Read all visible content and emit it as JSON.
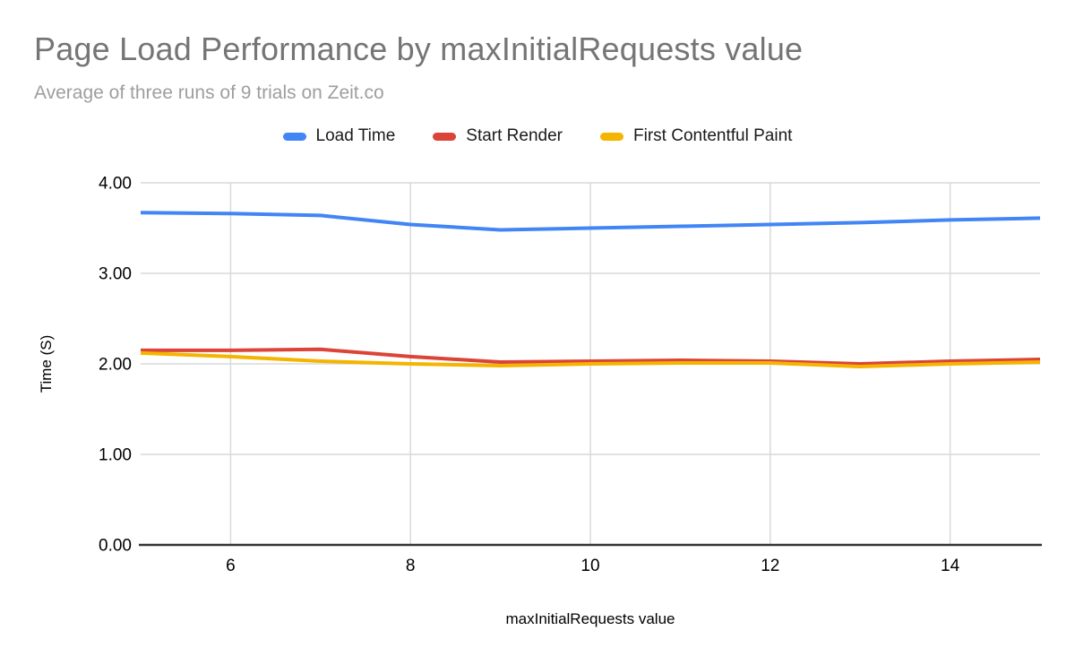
{
  "title": "Page Load Performance by maxInitialRequests value",
  "subtitle": "Average of three runs of 9 trials on Zeit.co",
  "colors": {
    "title": "#757575",
    "subtitle": "#9e9e9e",
    "gridline": "#d9d9d9",
    "axis_line": "#333333",
    "tick_label": "#000000"
  },
  "chart_data": {
    "type": "line",
    "title": "Page Load Performance by maxInitialRequests value",
    "subtitle": "Average of three runs of 9 trials on Zeit.co",
    "xlabel": "maxInitialRequests value",
    "ylabel": "Time (S)",
    "xlim": [
      5,
      15
    ],
    "ylim": [
      0,
      4
    ],
    "grid": true,
    "legend_position": "top-center",
    "x": [
      5,
      6,
      7,
      8,
      9,
      10,
      11,
      12,
      13,
      14,
      15
    ],
    "x_ticks": [
      6,
      8,
      10,
      12,
      14
    ],
    "y_ticks": [
      {
        "value": 0,
        "label": "0.00"
      },
      {
        "value": 1,
        "label": "1.00"
      },
      {
        "value": 2,
        "label": "2.00"
      },
      {
        "value": 3,
        "label": "3.00"
      },
      {
        "value": 4,
        "label": "4.00"
      }
    ],
    "series": [
      {
        "name": "Load Time",
        "color": "#4285f4",
        "values": [
          3.67,
          3.66,
          3.64,
          3.54,
          3.48,
          3.5,
          3.52,
          3.54,
          3.56,
          3.59,
          3.61
        ]
      },
      {
        "name": "Start Render",
        "color": "#db4437",
        "values": [
          2.15,
          2.15,
          2.16,
          2.08,
          2.02,
          2.03,
          2.04,
          2.03,
          2.0,
          2.03,
          2.05
        ]
      },
      {
        "name": "First Contentful Paint",
        "color": "#f4b400",
        "values": [
          2.12,
          2.08,
          2.03,
          2.0,
          1.98,
          2.0,
          2.01,
          2.01,
          1.97,
          2.0,
          2.02
        ]
      }
    ]
  }
}
